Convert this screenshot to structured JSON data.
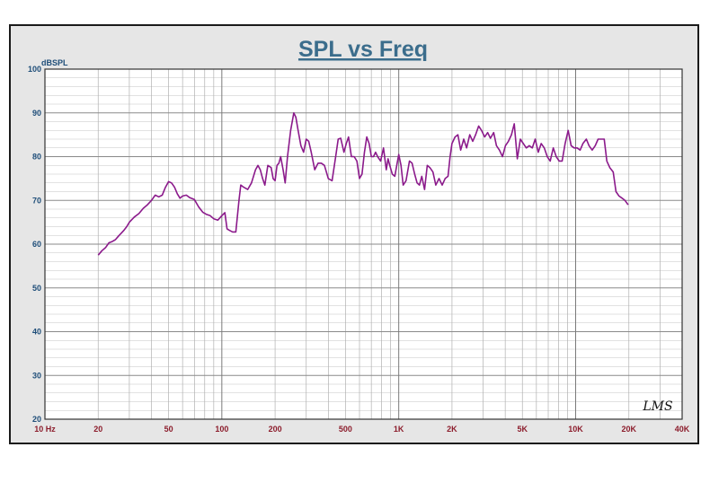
{
  "chart_data": {
    "type": "line",
    "title": "SPL vs Freq",
    "ylabel": "dBSPL",
    "xlabel": "",
    "x_scale": "log",
    "xlim": [
      10,
      40000
    ],
    "ylim": [
      20,
      100
    ],
    "grid": true,
    "y_ticks": [
      {
        "value": 20,
        "label": "20"
      },
      {
        "value": 30,
        "label": "30"
      },
      {
        "value": 40,
        "label": "40"
      },
      {
        "value": 50,
        "label": "50"
      },
      {
        "value": 60,
        "label": "60"
      },
      {
        "value": 70,
        "label": "70"
      },
      {
        "value": 80,
        "label": "80"
      },
      {
        "value": 90,
        "label": "90"
      },
      {
        "value": 100,
        "label": "100"
      }
    ],
    "x_ticks": [
      {
        "value": 10,
        "label": "10  Hz"
      },
      {
        "value": 20,
        "label": "20"
      },
      {
        "value": 50,
        "label": "50"
      },
      {
        "value": 100,
        "label": "100"
      },
      {
        "value": 200,
        "label": "200"
      },
      {
        "value": 500,
        "label": "500"
      },
      {
        "value": 1000,
        "label": "1K"
      },
      {
        "value": 2000,
        "label": "2K"
      },
      {
        "value": 5000,
        "label": "5K"
      },
      {
        "value": 10000,
        "label": "10K"
      },
      {
        "value": 20000,
        "label": "20K"
      },
      {
        "value": 40000,
        "label": "40K"
      }
    ],
    "series": [
      {
        "color": "#8b1a8b",
        "points": [
          [
            20,
            57.5
          ],
          [
            21,
            58.5
          ],
          [
            22,
            59.2
          ],
          [
            23,
            60.3
          ],
          [
            24,
            60.6
          ],
          [
            25,
            61
          ],
          [
            26,
            61.8
          ],
          [
            27,
            62.5
          ],
          [
            28,
            63.2
          ],
          [
            29,
            64
          ],
          [
            30,
            65
          ],
          [
            32,
            66.2
          ],
          [
            34,
            67
          ],
          [
            36,
            68.2
          ],
          [
            38,
            69
          ],
          [
            40,
            70
          ],
          [
            42,
            71.2
          ],
          [
            44,
            70.8
          ],
          [
            46,
            71.2
          ],
          [
            48,
            73
          ],
          [
            50,
            74.3
          ],
          [
            52,
            74
          ],
          [
            54,
            73
          ],
          [
            56,
            71.5
          ],
          [
            58,
            70.5
          ],
          [
            60,
            71
          ],
          [
            63,
            71.2
          ],
          [
            66,
            70.6
          ],
          [
            70,
            70.2
          ],
          [
            74,
            68.5
          ],
          [
            78,
            67.3
          ],
          [
            82,
            66.8
          ],
          [
            86,
            66.5
          ],
          [
            90,
            65.8
          ],
          [
            95,
            65.5
          ],
          [
            100,
            66.5
          ],
          [
            104,
            67.2
          ],
          [
            107,
            63.5
          ],
          [
            110,
            63.2
          ],
          [
            115,
            62.8
          ],
          [
            120,
            62.8
          ],
          [
            125,
            70
          ],
          [
            128,
            73.5
          ],
          [
            133,
            73
          ],
          [
            140,
            72.5
          ],
          [
            147,
            74
          ],
          [
            155,
            77
          ],
          [
            160,
            78
          ],
          [
            165,
            77
          ],
          [
            170,
            75
          ],
          [
            175,
            73.5
          ],
          [
            182,
            78
          ],
          [
            190,
            77.5
          ],
          [
            195,
            75
          ],
          [
            200,
            74.5
          ],
          [
            205,
            78
          ],
          [
            210,
            78.5
          ],
          [
            215,
            80
          ],
          [
            222,
            77
          ],
          [
            228,
            74
          ],
          [
            235,
            80
          ],
          [
            245,
            86
          ],
          [
            255,
            90
          ],
          [
            262,
            89
          ],
          [
            270,
            86
          ],
          [
            280,
            82.5
          ],
          [
            290,
            81
          ],
          [
            300,
            84
          ],
          [
            310,
            83.5
          ],
          [
            320,
            81
          ],
          [
            335,
            77
          ],
          [
            350,
            78.5
          ],
          [
            365,
            78.5
          ],
          [
            380,
            78
          ],
          [
            400,
            75
          ],
          [
            420,
            74.5
          ],
          [
            440,
            80
          ],
          [
            455,
            84
          ],
          [
            470,
            84.2
          ],
          [
            490,
            81
          ],
          [
            505,
            83
          ],
          [
            520,
            84.5
          ],
          [
            540,
            80
          ],
          [
            560,
            80
          ],
          [
            580,
            79
          ],
          [
            600,
            75
          ],
          [
            620,
            76
          ],
          [
            640,
            81
          ],
          [
            660,
            84.5
          ],
          [
            680,
            83
          ],
          [
            700,
            80
          ],
          [
            720,
            80
          ],
          [
            740,
            81
          ],
          [
            760,
            80
          ],
          [
            790,
            79
          ],
          [
            820,
            82
          ],
          [
            850,
            77
          ],
          [
            870,
            79.5
          ],
          [
            890,
            78
          ],
          [
            920,
            76
          ],
          [
            950,
            75.5
          ],
          [
            980,
            78.5
          ],
          [
            1000,
            80.5
          ],
          [
            1030,
            78
          ],
          [
            1060,
            73.5
          ],
          [
            1100,
            74.5
          ],
          [
            1150,
            79
          ],
          [
            1190,
            78.5
          ],
          [
            1230,
            76
          ],
          [
            1270,
            74
          ],
          [
            1310,
            73.5
          ],
          [
            1350,
            75.5
          ],
          [
            1400,
            72.5
          ],
          [
            1450,
            78
          ],
          [
            1500,
            77.5
          ],
          [
            1560,
            76.5
          ],
          [
            1620,
            73.5
          ],
          [
            1690,
            75
          ],
          [
            1760,
            73.5
          ],
          [
            1830,
            75
          ],
          [
            1900,
            75.5
          ],
          [
            1950,
            80
          ],
          [
            2000,
            83
          ],
          [
            2080,
            84.5
          ],
          [
            2160,
            85
          ],
          [
            2240,
            81.5
          ],
          [
            2330,
            84
          ],
          [
            2420,
            82
          ],
          [
            2520,
            85
          ],
          [
            2620,
            83.5
          ],
          [
            2720,
            85
          ],
          [
            2830,
            87
          ],
          [
            2940,
            86
          ],
          [
            3060,
            84.5
          ],
          [
            3180,
            85.5
          ],
          [
            3300,
            84.2
          ],
          [
            3440,
            85.5
          ],
          [
            3570,
            82.5
          ],
          [
            3710,
            81.5
          ],
          [
            3860,
            80
          ],
          [
            4010,
            82.5
          ],
          [
            4170,
            83.5
          ],
          [
            4340,
            85
          ],
          [
            4500,
            87.5
          ],
          [
            4680,
            79.5
          ],
          [
            4870,
            84
          ],
          [
            5060,
            83
          ],
          [
            5260,
            82
          ],
          [
            5470,
            82.5
          ],
          [
            5690,
            82
          ],
          [
            5910,
            84
          ],
          [
            6150,
            81
          ],
          [
            6390,
            83
          ],
          [
            6650,
            82
          ],
          [
            6910,
            80
          ],
          [
            7180,
            79
          ],
          [
            7470,
            82
          ],
          [
            7770,
            80
          ],
          [
            8070,
            79
          ],
          [
            8390,
            79
          ],
          [
            8720,
            83
          ],
          [
            9070,
            86
          ],
          [
            9430,
            82.5
          ],
          [
            9810,
            82
          ],
          [
            10200,
            82
          ],
          [
            10600,
            81.5
          ],
          [
            11000,
            83
          ],
          [
            11500,
            84
          ],
          [
            11900,
            82.5
          ],
          [
            12400,
            81.5
          ],
          [
            12900,
            82.5
          ],
          [
            13400,
            84
          ],
          [
            13900,
            84
          ],
          [
            14500,
            84
          ],
          [
            15000,
            79
          ],
          [
            15600,
            77.5
          ],
          [
            16300,
            76.5
          ],
          [
            16900,
            72
          ],
          [
            17600,
            71
          ],
          [
            18300,
            70.5
          ],
          [
            19000,
            70
          ],
          [
            19800,
            69
          ]
        ]
      }
    ]
  },
  "watermark": "LMS"
}
